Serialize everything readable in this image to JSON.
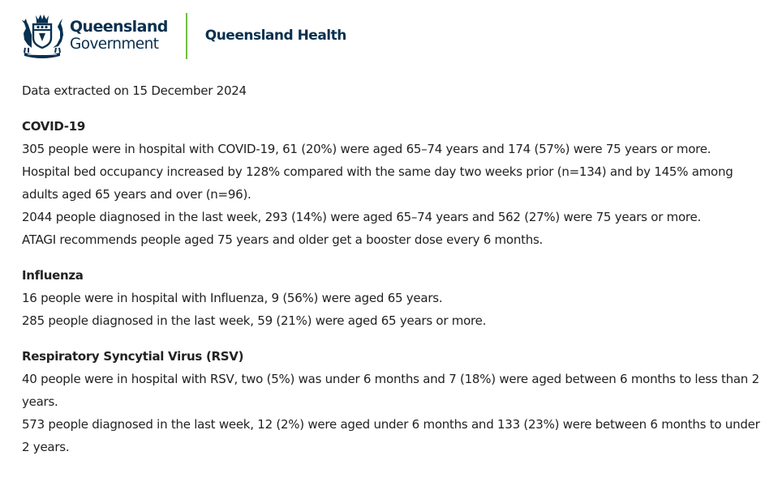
{
  "header": {
    "gov_line1": "Queensland",
    "gov_line2": "Government",
    "department": "Queensland Health",
    "divider_color": "#6fbf44",
    "brand_color": "#09304f"
  },
  "extracted": "Data extracted on 15 December 2024",
  "sections": [
    {
      "title": "COVID-19",
      "lines": [
        "305 people were in hospital with COVID-19, 61 (20%) were aged 65–74 years and 174 (57%) were 75 years or more.",
        "Hospital bed occupancy increased by 128% compared with the same day two weeks prior (n=134) and by 145% among adults aged 65 years and over (n=96).",
        "2044 people diagnosed in the last week, 293 (14%) were aged 65–74 years and 562 (27%) were 75 years or more.",
        "ATAGI recommends people aged 75 years and older get a booster dose every 6 months."
      ]
    },
    {
      "title": "Influenza",
      "lines": [
        "16 people were in hospital with Influenza, 9 (56%) were aged 65 years.",
        "285 people diagnosed in the last week, 59 (21%) were aged 65 years or more."
      ]
    },
    {
      "title": "Respiratory Syncytial Virus (RSV)",
      "lines": [
        "40 people were in hospital with RSV, two (5%) was under 6 months and 7 (18%) were aged between 6 months to less than 2 years.",
        "573 people diagnosed in the last week, 12 (2%) were aged under 6 months and 133 (23%) were between 6 months to under 2 years."
      ]
    }
  ]
}
